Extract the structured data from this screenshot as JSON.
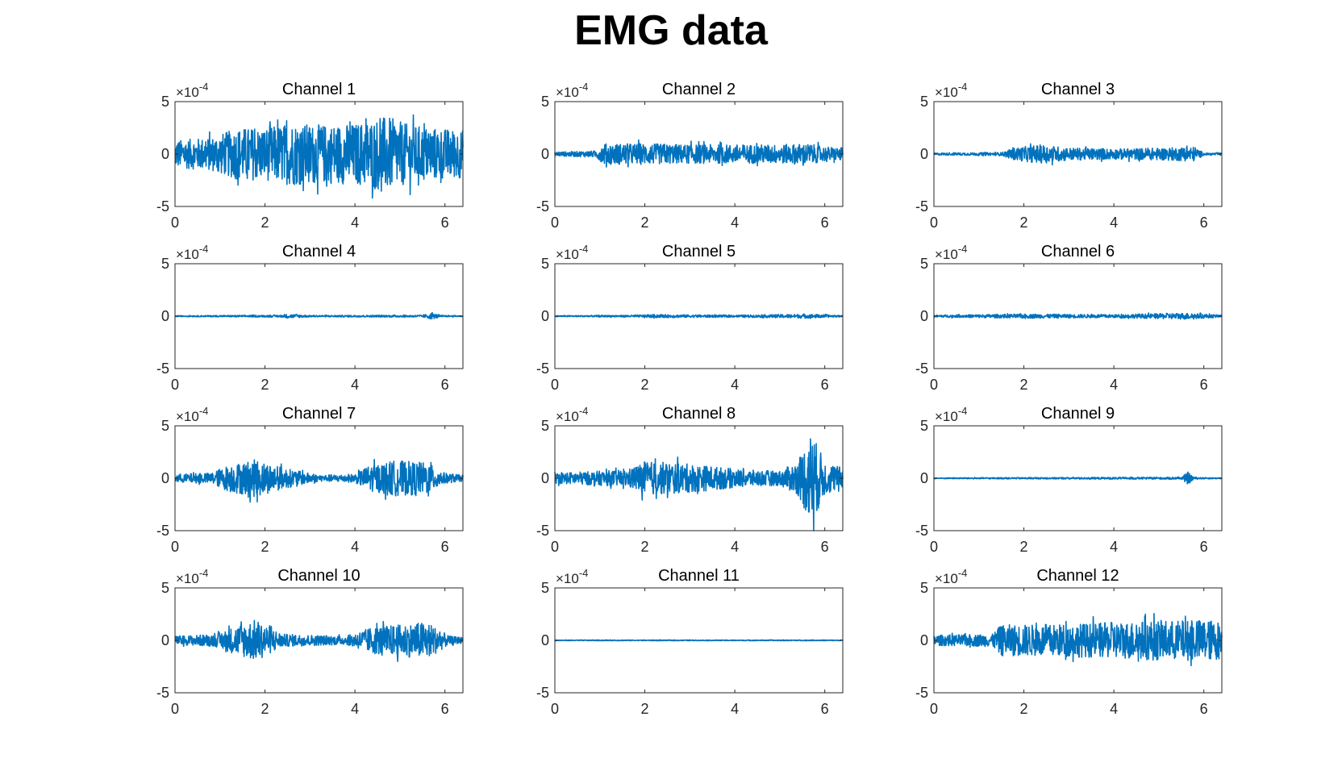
{
  "figure": {
    "title": "EMG data"
  },
  "style": {
    "line_color": "#0072BD",
    "axis_color": "#262626"
  },
  "chart_data": {
    "type": "line",
    "layout": "4x3 grid of subplots",
    "xlim": [
      0,
      6.4
    ],
    "ylim": [
      -5,
      5
    ],
    "y_exponent_label": "×10",
    "y_exponent_power": "-4",
    "x_ticks": [
      0,
      2,
      4,
      6
    ],
    "y_ticks": [
      -5,
      0,
      5
    ],
    "grid": false,
    "subplots": [
      {
        "title": "Channel 1",
        "envelope": [
          [
            0,
            1.3
          ],
          [
            0.8,
            1.6
          ],
          [
            1.4,
            2.5
          ],
          [
            2.0,
            2.5
          ],
          [
            2.6,
            3.0
          ],
          [
            3.2,
            2.8
          ],
          [
            4.0,
            2.9
          ],
          [
            4.7,
            3.6
          ],
          [
            5.2,
            2.8
          ],
          [
            5.8,
            2.5
          ],
          [
            6.4,
            2.3
          ]
        ]
      },
      {
        "title": "Channel 2",
        "envelope": [
          [
            0,
            0.2
          ],
          [
            0.9,
            0.3
          ],
          [
            1.1,
            1.0
          ],
          [
            2.0,
            1.0
          ],
          [
            3.0,
            0.9
          ],
          [
            4.0,
            0.9
          ],
          [
            5.0,
            0.9
          ],
          [
            5.6,
            1.0
          ],
          [
            6.0,
            0.7
          ],
          [
            6.4,
            0.6
          ]
        ]
      },
      {
        "title": "Channel 3",
        "envelope": [
          [
            0,
            0.1
          ],
          [
            1.5,
            0.15
          ],
          [
            1.8,
            0.6
          ],
          [
            2.4,
            0.9
          ],
          [
            3.0,
            0.6
          ],
          [
            4.0,
            0.5
          ],
          [
            5.2,
            0.6
          ],
          [
            5.8,
            0.7
          ],
          [
            6.0,
            0.1
          ],
          [
            6.4,
            0.1
          ]
        ]
      },
      {
        "title": "Channel 4",
        "envelope": [
          [
            0,
            0.05
          ],
          [
            2.4,
            0.1
          ],
          [
            2.5,
            0.2
          ],
          [
            3.0,
            0.08
          ],
          [
            5.5,
            0.1
          ],
          [
            5.7,
            0.3
          ],
          [
            5.9,
            0.08
          ],
          [
            6.4,
            0.05
          ]
        ]
      },
      {
        "title": "Channel 5",
        "envelope": [
          [
            0,
            0.05
          ],
          [
            1.8,
            0.1
          ],
          [
            2.2,
            0.15
          ],
          [
            4.0,
            0.1
          ],
          [
            5.7,
            0.2
          ],
          [
            6.4,
            0.05
          ]
        ]
      },
      {
        "title": "Channel 6",
        "envelope": [
          [
            0,
            0.1
          ],
          [
            1.0,
            0.15
          ],
          [
            2.0,
            0.2
          ],
          [
            4.0,
            0.15
          ],
          [
            5.6,
            0.3
          ],
          [
            6.4,
            0.1
          ]
        ]
      },
      {
        "title": "Channel 7",
        "envelope": [
          [
            0,
            0.4
          ],
          [
            0.8,
            0.5
          ],
          [
            1.2,
            1.3
          ],
          [
            1.8,
            1.8
          ],
          [
            2.4,
            1.0
          ],
          [
            3.2,
            0.3
          ],
          [
            4.0,
            0.4
          ],
          [
            4.3,
            1.2
          ],
          [
            4.9,
            1.7
          ],
          [
            5.6,
            1.5
          ],
          [
            6.0,
            0.5
          ],
          [
            6.4,
            0.3
          ]
        ]
      },
      {
        "title": "Channel 8",
        "envelope": [
          [
            0,
            0.5
          ],
          [
            1.6,
            0.8
          ],
          [
            2.0,
            1.6
          ],
          [
            2.6,
            1.5
          ],
          [
            3.4,
            1.2
          ],
          [
            4.2,
            0.8
          ],
          [
            5.0,
            0.7
          ],
          [
            5.4,
            1.6
          ],
          [
            5.7,
            4.5
          ],
          [
            6.0,
            1.6
          ],
          [
            6.4,
            1.0
          ]
        ]
      },
      {
        "title": "Channel 9",
        "envelope": [
          [
            0,
            0.05
          ],
          [
            3.0,
            0.08
          ],
          [
            5.5,
            0.1
          ],
          [
            5.65,
            0.6
          ],
          [
            5.8,
            0.08
          ],
          [
            6.4,
            0.05
          ]
        ]
      },
      {
        "title": "Channel 10",
        "envelope": [
          [
            0,
            0.4
          ],
          [
            0.9,
            0.6
          ],
          [
            1.3,
            1.3
          ],
          [
            1.8,
            2.0
          ],
          [
            2.4,
            0.6
          ],
          [
            3.8,
            0.4
          ],
          [
            4.4,
            1.3
          ],
          [
            5.0,
            1.5
          ],
          [
            5.6,
            1.8
          ],
          [
            6.1,
            0.4
          ],
          [
            6.4,
            0.3
          ]
        ]
      },
      {
        "title": "Channel 11",
        "envelope": [
          [
            0,
            0.04
          ],
          [
            6.4,
            0.04
          ]
        ]
      },
      {
        "title": "Channel 12",
        "envelope": [
          [
            0,
            0.5
          ],
          [
            1.3,
            0.6
          ],
          [
            1.5,
            1.5
          ],
          [
            2.4,
            1.5
          ],
          [
            3.2,
            1.6
          ],
          [
            4.0,
            1.7
          ],
          [
            4.8,
            1.9
          ],
          [
            5.6,
            1.9
          ],
          [
            6.0,
            2.0
          ],
          [
            6.4,
            1.8
          ]
        ]
      }
    ]
  }
}
